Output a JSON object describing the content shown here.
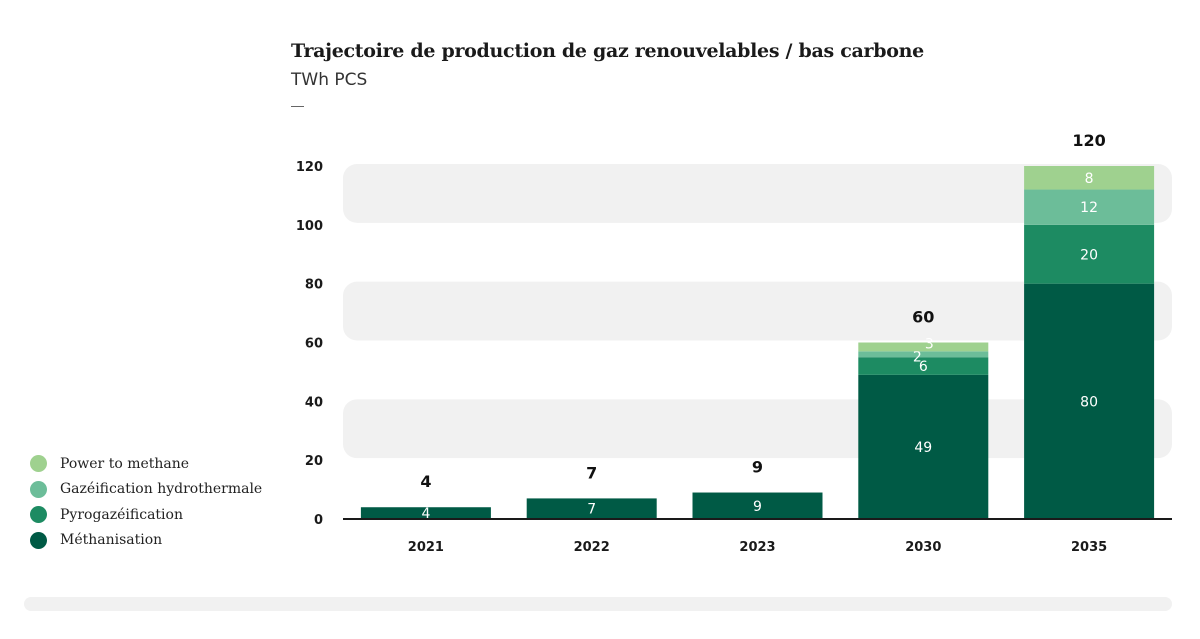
{
  "chart_data": {
    "type": "bar",
    "stacked": true,
    "title": "Trajectoire de production de gaz renouvelables / bas carbone",
    "subtitle": "TWh PCS",
    "categories": [
      "2021",
      "2022",
      "2023",
      "2030",
      "2035"
    ],
    "totals": [
      "4",
      "7",
      "9",
      "60",
      "120"
    ],
    "series": [
      {
        "name": "Méthanisation",
        "color": "#005a45",
        "values": [
          4,
          7,
          9,
          49,
          80
        ],
        "labels": [
          "4",
          "7",
          "9",
          "49",
          "80"
        ]
      },
      {
        "name": "Pyrogazéification",
        "color": "#1d8b62",
        "values": [
          0,
          0,
          0,
          6,
          20
        ],
        "labels": [
          "",
          "",
          "",
          "6",
          "20"
        ]
      },
      {
        "name": "Gazéification hydrothermale",
        "color": "#6cbd99",
        "values": [
          0,
          0,
          0,
          2,
          12
        ],
        "labels": [
          "",
          "",
          "",
          "2",
          "12"
        ]
      },
      {
        "name": "Power to methane",
        "color": "#9fd18f",
        "values": [
          0,
          0,
          0,
          3,
          8
        ],
        "labels": [
          "",
          "",
          "",
          "3",
          "8"
        ]
      }
    ],
    "yticks": [
      "0",
      "20",
      "40",
      "60",
      "80",
      "100",
      "120"
    ],
    "ylim": [
      0,
      120
    ],
    "grid": "alternating bands",
    "legend_position": "left"
  }
}
